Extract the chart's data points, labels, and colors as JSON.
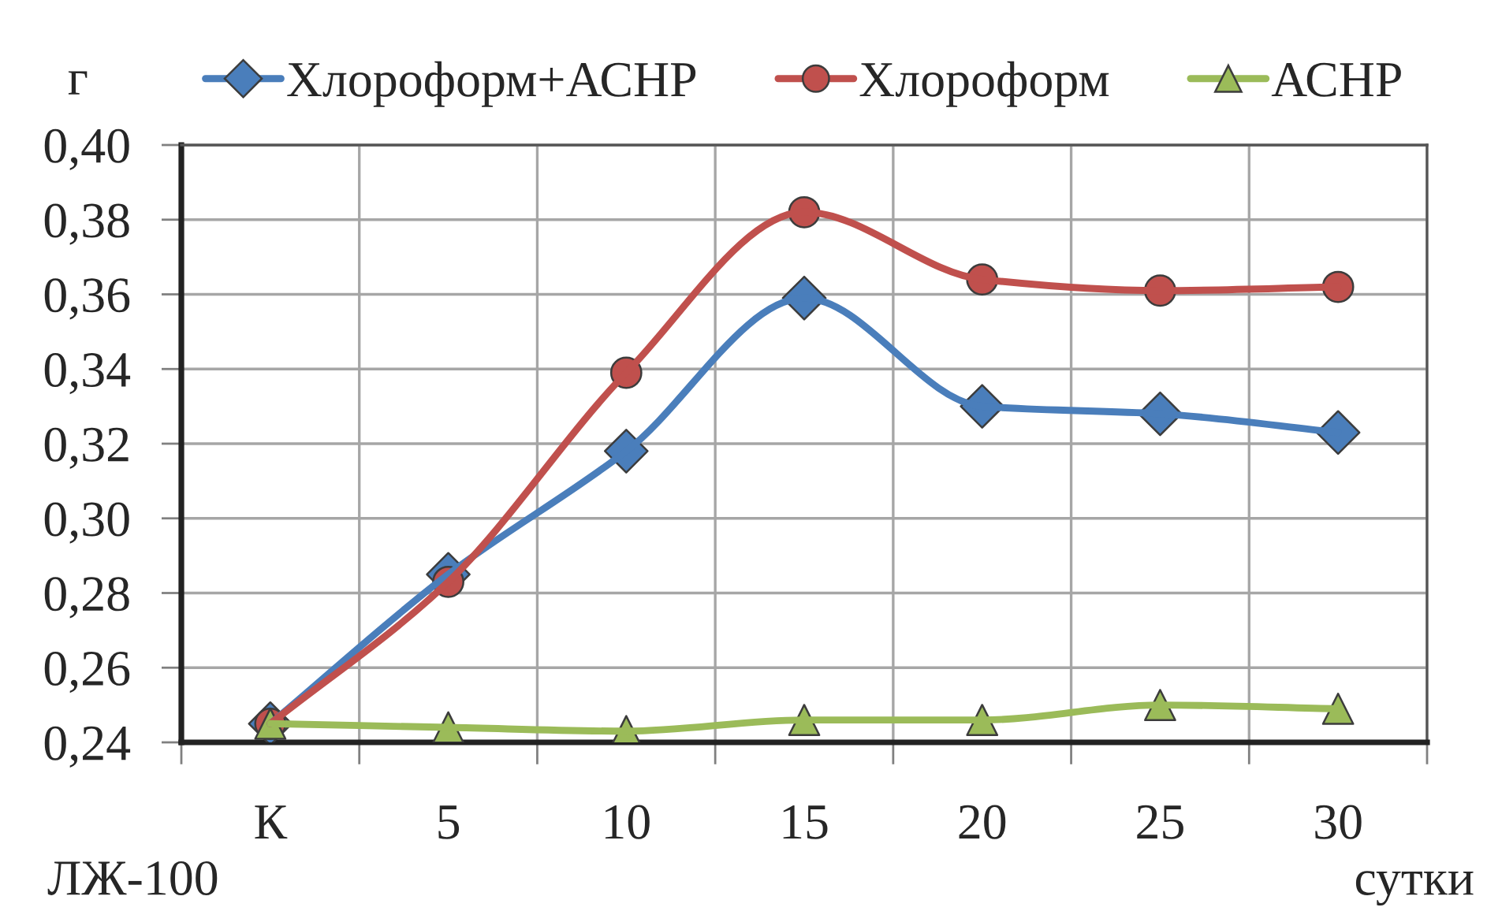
{
  "chart_data": {
    "type": "line",
    "ylabel": "г",
    "xlabel": "сутки",
    "annotations": [
      "ЛЖ-100"
    ],
    "categories": [
      "К",
      "5",
      "10",
      "15",
      "20",
      "25",
      "30"
    ],
    "series": [
      {
        "name": "Хлороформ+АСНР",
        "color": "#4a7ebb",
        "marker": "diamond",
        "values": [
          0.245,
          0.285,
          0.318,
          0.359,
          0.33,
          0.328,
          0.323
        ]
      },
      {
        "name": "Хлороформ",
        "color": "#c0504d",
        "marker": "circle",
        "values": [
          0.245,
          0.283,
          0.339,
          0.382,
          0.364,
          0.361,
          0.362
        ]
      },
      {
        "name": "АСНР",
        "color": "#9bbb59",
        "marker": "triangle",
        "values": [
          0.245,
          0.244,
          0.243,
          0.246,
          0.246,
          0.25,
          0.249
        ]
      }
    ],
    "ylim": [
      0.24,
      0.4
    ],
    "yticks": [
      {
        "value": 0.24,
        "label": "0,24"
      },
      {
        "value": 0.26,
        "label": "0,26"
      },
      {
        "value": 0.28,
        "label": "0,28"
      },
      {
        "value": 0.3,
        "label": "0,30"
      },
      {
        "value": 0.32,
        "label": "0,32"
      },
      {
        "value": 0.34,
        "label": "0,34"
      },
      {
        "value": 0.36,
        "label": "0,36"
      },
      {
        "value": 0.38,
        "label": "0,38"
      },
      {
        "value": 0.4,
        "label": "0,40"
      }
    ],
    "grid": true,
    "legend": "top",
    "line_style": "solid"
  }
}
